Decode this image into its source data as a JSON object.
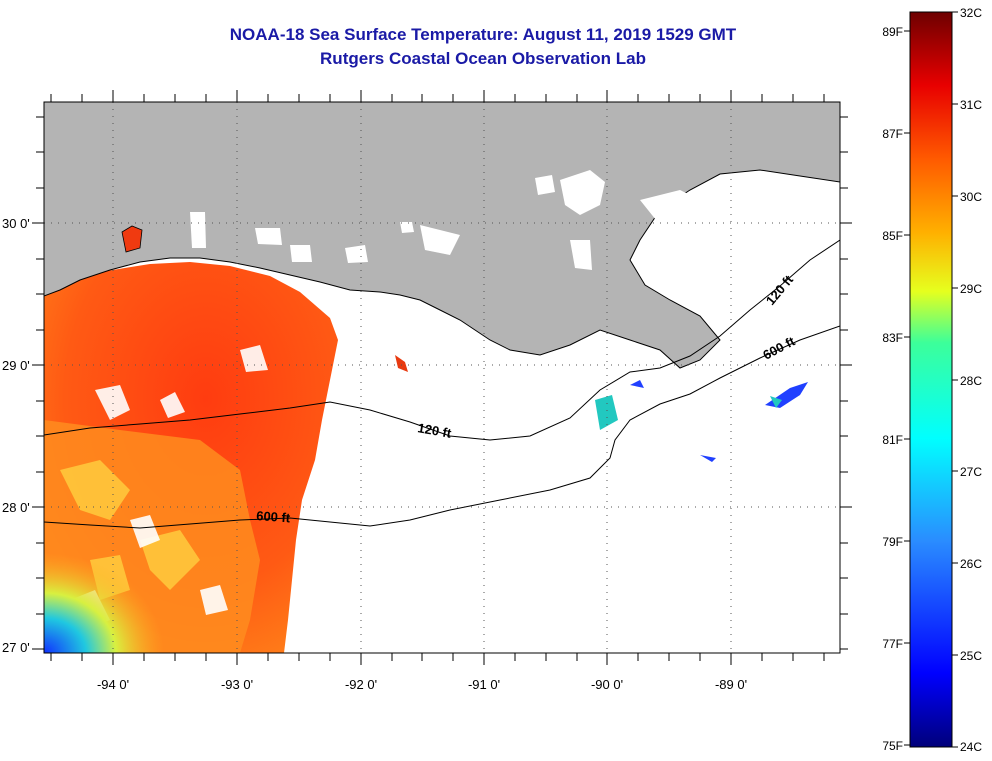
{
  "header": {
    "title": "NOAA-18 Sea Surface Temperature:  August 11, 2019 1529 GMT",
    "subtitle": "Rutgers Coastal Ocean Observation Lab"
  },
  "map": {
    "lon_labels": [
      "-94 0'",
      "-93 0'",
      "-92 0'",
      "-91 0'",
      "-90 0'",
      "-89 0'"
    ],
    "lat_labels": [
      "30 0'",
      "29 0'",
      "28 0'",
      "27 0'"
    ],
    "contours": {
      "shelf_120_label_west": "120 ft",
      "shelf_120_label_east": "120 ft",
      "slope_600_label_west": "600 ft",
      "slope_600_label_east": "600 ft"
    },
    "colors": {
      "land": "#b4b4b4",
      "cloud": "#ffffff",
      "sst_warm": "#ff4b10",
      "sst_orange": "#ff8a1a",
      "sst_yellow": "#ffe640",
      "sst_cyan": "#22d4c8",
      "sst_blue": "#1a40ff"
    }
  },
  "colorbar": {
    "celsius_labels": [
      "32C",
      "31C",
      "30C",
      "29C",
      "28C",
      "27C",
      "26C",
      "25C",
      "24C"
    ],
    "fahrenheit_labels": [
      "89F",
      "87F",
      "85F",
      "83F",
      "81F",
      "79F",
      "77F",
      "75F"
    ],
    "range_c": [
      24,
      32
    ]
  }
}
